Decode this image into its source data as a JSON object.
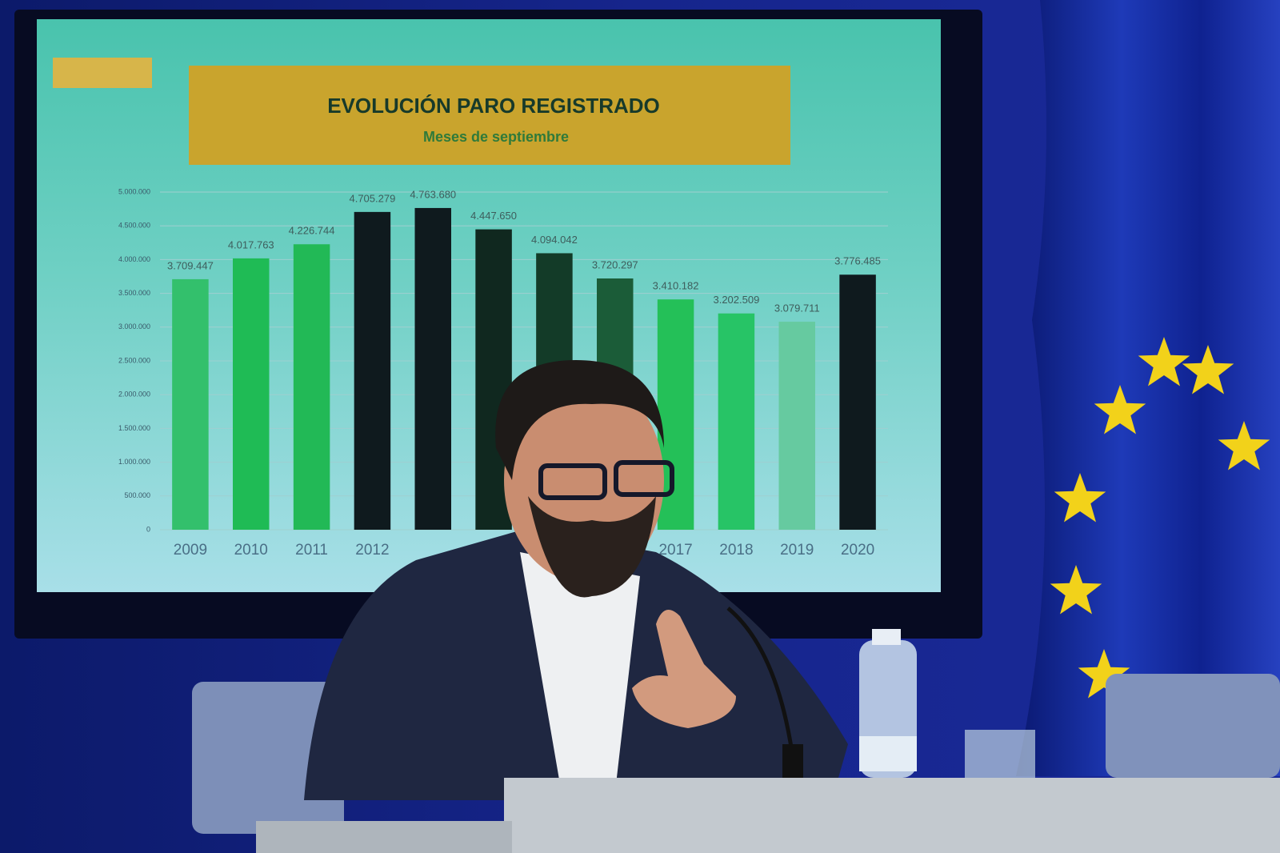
{
  "chart_data": {
    "type": "bar",
    "title": "EVOLUCIÓN PARO REGISTRADO",
    "subtitle": "Meses de septiembre",
    "categories": [
      "2009",
      "2010",
      "2011",
      "2012",
      null,
      null,
      null,
      null,
      "2017",
      "2018",
      "2019",
      "2020"
    ],
    "values": [
      3709447,
      4017763,
      4226744,
      4705279,
      4763680,
      4447650,
      4094042,
      3720297,
      3410182,
      3202509,
      3079711,
      3776485
    ],
    "value_labels": [
      "3.709.447",
      "4.017.763",
      "4.226.744",
      "4.705.279",
      "4.763.680",
      "4.447.650",
      "4.094.042",
      "3.720.297",
      "3.410.182",
      "3.202.509",
      "3.079.711",
      "3.776.485"
    ],
    "colors": [
      "#33c06c",
      "#1fbb55",
      "#22b956",
      "#0f1a1e",
      "#0f1a1e",
      "#10281f",
      "#133b28",
      "#1b5c38",
      "#24c058",
      "#27c466",
      "#66caa0",
      "#0f1a1e"
    ],
    "ylim": [
      0,
      5000000
    ],
    "yticks": [
      0,
      {
        "value": 500000,
        "label": "500.000"
      },
      {
        "value": 1000000,
        "label": "1.000.000"
      },
      {
        "value": 1500000,
        "label": "1.500.000"
      },
      {
        "value": 2000000,
        "label": "2.000.000"
      },
      {
        "value": 2500000,
        "label": "2.500.000"
      },
      {
        "value": 3000000,
        "label": "3.000.000"
      },
      {
        "value": 3500000,
        "label": "3.500.000"
      },
      {
        "value": 4000000,
        "label": "4.000.000"
      },
      {
        "value": 4500000,
        "label": "4.500.000"
      },
      {
        "value": 5000000,
        "label": "5.000.000"
      }
    ],
    "grid": true
  }
}
